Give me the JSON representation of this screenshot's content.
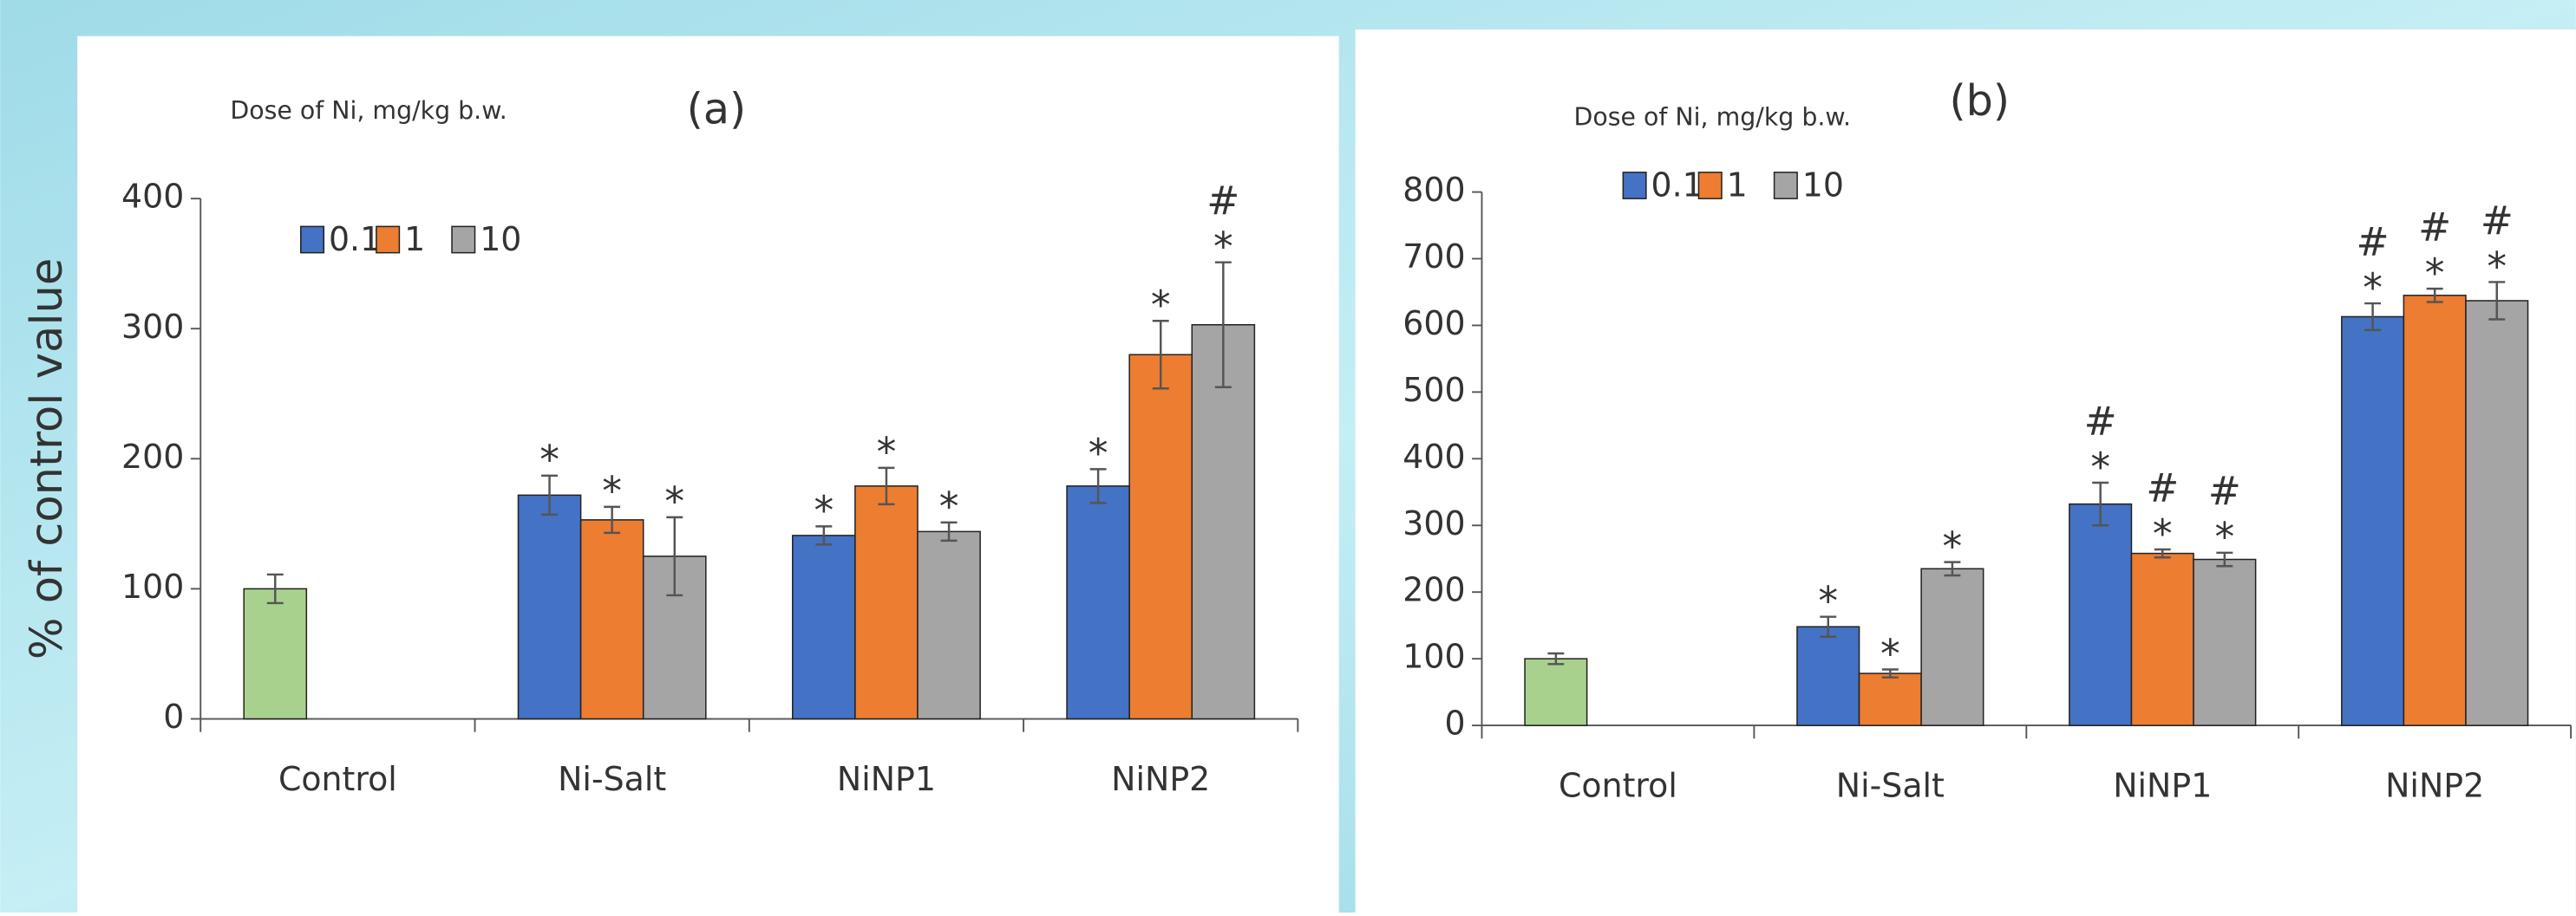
{
  "chart_data": [
    {
      "type": "bar",
      "title": "(a)",
      "subtitle": "Dose of Ni, mg/kg b.w.",
      "ylabel": "% of control value",
      "categories": [
        "Control",
        "Ni-Salt",
        "NiNP1",
        "NiNP2"
      ],
      "control": {
        "value": 100,
        "error": 11,
        "color": "#a9d18e"
      },
      "series": [
        {
          "name": "0.1",
          "color": "#4472c4",
          "values": [
            null,
            172,
            141,
            179
          ],
          "errors": [
            null,
            15,
            7,
            13
          ],
          "sig": [
            null,
            [
              "*"
            ],
            [
              "*"
            ],
            [
              "*"
            ]
          ]
        },
        {
          "name": "1",
          "color": "#ed7d31",
          "values": [
            null,
            153,
            179,
            280
          ],
          "errors": [
            null,
            10,
            14,
            26
          ],
          "sig": [
            null,
            [
              "*"
            ],
            [
              "*"
            ],
            [
              "*"
            ]
          ]
        },
        {
          "name": "10",
          "color": "#a5a5a5",
          "values": [
            null,
            125,
            144,
            303
          ],
          "errors": [
            null,
            30,
            7,
            48
          ],
          "sig": [
            null,
            [
              "*"
            ],
            [
              "*"
            ],
            [
              "#",
              "*"
            ]
          ]
        }
      ],
      "ylim": [
        0,
        400
      ],
      "yticks": [
        0,
        100,
        200,
        300,
        400
      ]
    },
    {
      "type": "bar",
      "title": "(b)",
      "subtitle": "Dose of Ni, mg/kg b.w.",
      "categories": [
        "Control",
        "Ni-Salt",
        "NiNP1",
        "NiNP2"
      ],
      "control": {
        "value": 100,
        "error": 8,
        "color": "#a9d18e"
      },
      "series": [
        {
          "name": "0.1",
          "color": "#4472c4",
          "values": [
            null,
            148,
            332,
            613
          ],
          "errors": [
            null,
            15,
            32,
            20
          ],
          "sig": [
            null,
            [
              "*"
            ],
            [
              "#",
              "*"
            ],
            [
              "#",
              "*"
            ]
          ]
        },
        {
          "name": "1",
          "color": "#ed7d31",
          "values": [
            null,
            78,
            258,
            645
          ],
          "errors": [
            null,
            6,
            6,
            10
          ],
          "sig": [
            null,
            [
              "*"
            ],
            [
              "#",
              "*"
            ],
            [
              "#",
              "*"
            ]
          ]
        },
        {
          "name": "10",
          "color": "#a5a5a5",
          "values": [
            null,
            235,
            249,
            637
          ],
          "errors": [
            null,
            10,
            10,
            28
          ],
          "sig": [
            null,
            [
              "*"
            ],
            [
              "#",
              "*"
            ],
            [
              "#",
              "*"
            ]
          ]
        }
      ],
      "ylim": [
        0,
        800
      ],
      "yticks": [
        0,
        100,
        200,
        300,
        400,
        500,
        600,
        700,
        800
      ]
    }
  ]
}
